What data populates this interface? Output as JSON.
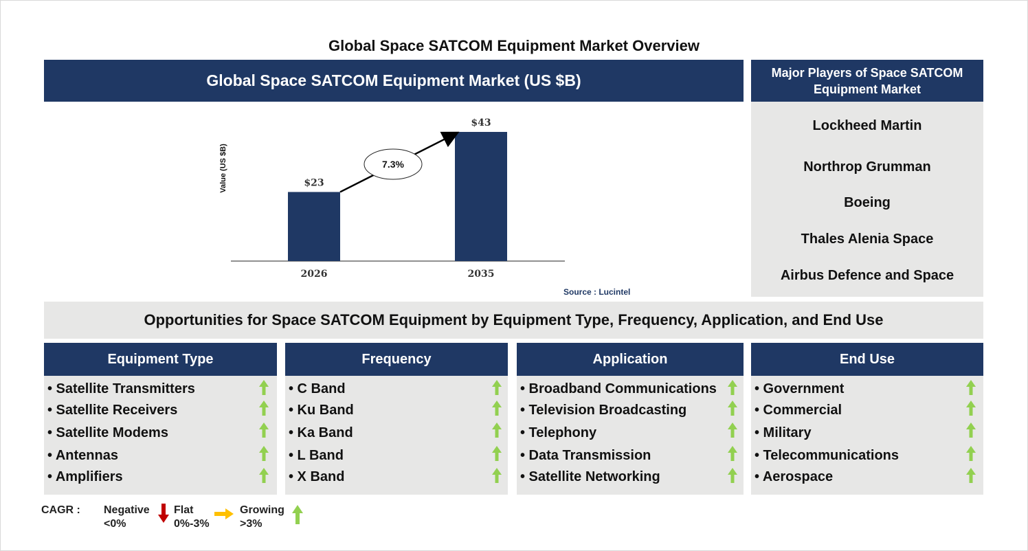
{
  "title": "Global Space SATCOM Equipment Market Overview",
  "chart_panel": {
    "header": "Global Space SATCOM Equipment Market (US $B)",
    "source": "Source : Lucintel"
  },
  "chart_data": {
    "type": "bar",
    "categories": [
      "2026",
      "2035"
    ],
    "values": [
      23,
      43
    ],
    "data_labels": [
      "$23",
      "$43"
    ],
    "ylabel": "Value (US $B)",
    "cagr_label": "7.3%",
    "colors": {
      "bar": "#1f3864"
    }
  },
  "players": {
    "header": "Major Players of Space SATCOM Equipment Market",
    "items": [
      "Lockheed Martin",
      "Northrop Grumman",
      "Boeing",
      "Thales Alenia Space",
      "Airbus Defence and Space"
    ]
  },
  "opportunities": {
    "title": "Opportunities for Space SATCOM Equipment by Equipment Type, Frequency, Application, and End Use",
    "columns": [
      {
        "header": "Equipment Type",
        "items": [
          "• Satellite Transmitters",
          "• Satellite Receivers",
          "• Satellite Modems",
          "• Antennas",
          "• Amplifiers"
        ]
      },
      {
        "header": "Frequency",
        "items": [
          "• C Band",
          "• Ku Band",
          "• Ka Band",
          "• L Band",
          "• X Band"
        ]
      },
      {
        "header": "Application",
        "items": [
          "• Broadband Communications",
          "• Television Broadcasting",
          "• Telephony",
          "• Data Transmission",
          "• Satellite Networking"
        ]
      },
      {
        "header": "End Use",
        "items": [
          "• Government",
          "• Commercial",
          "• Military",
          "• Telecommunications",
          "• Aerospace"
        ]
      }
    ],
    "trend_icon": "green-up-arrow-icon"
  },
  "legend": {
    "cagr": "CAGR :",
    "negative": {
      "label": "Negative",
      "range": "<0%",
      "icon": "red-down-arrow-icon"
    },
    "flat": {
      "label": "Flat",
      "range": "0%-3%",
      "icon": "yellow-right-arrow-icon"
    },
    "growing": {
      "label": "Growing",
      "range": ">3%",
      "icon": "green-up-arrow-icon"
    }
  },
  "colors": {
    "navy": "#1f3864",
    "panel_grey": "#e7e7e6",
    "green": "#92d050",
    "red": "#c00000",
    "yellow": "#ffc000"
  }
}
